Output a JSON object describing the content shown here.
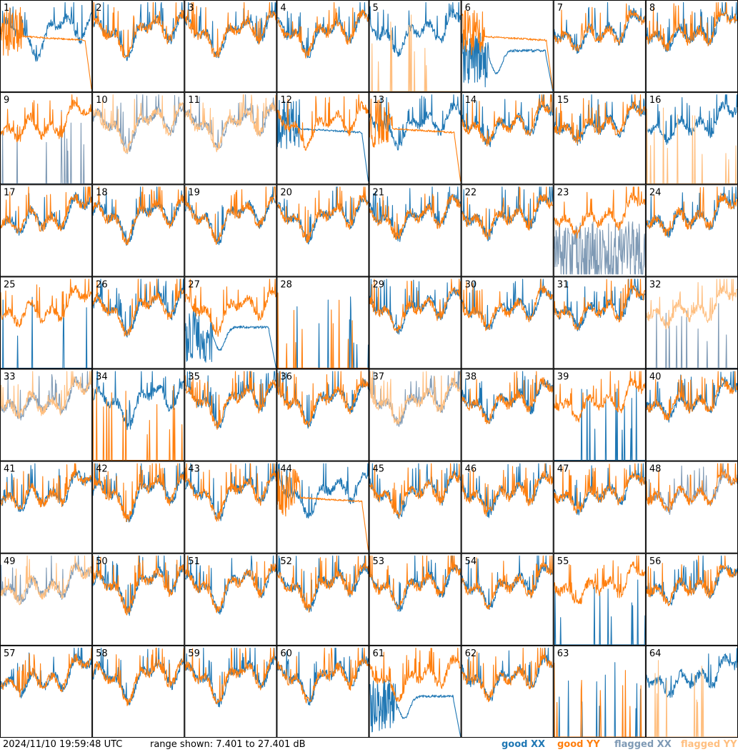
{
  "footer": {
    "timestamp": "2024/11/10 19:59:48 UTC",
    "range_text": "range shown: 7.401 to 27.401 dB",
    "legend": [
      "good XX",
      "good YY",
      "flagged XX",
      "flagged YY"
    ]
  },
  "colors": {
    "good_xx": "#1f77b4",
    "good_yy": "#ff7f0e",
    "flagged_xx": "#7f9ab5",
    "flagged_yy": "#ffbf80"
  },
  "chart_data": {
    "type": "line",
    "grid_layout": "8x8",
    "ylim_db": [
      7.401,
      27.401
    ],
    "series_names": [
      "good XX",
      "good YY",
      "flagged XX",
      "flagged YY"
    ],
    "panels": [
      {
        "label": "1",
        "xx": "good",
        "yy": "good",
        "mode_xx": "spec",
        "mode_yy": "flat"
      },
      {
        "label": "2",
        "xx": "good",
        "yy": "good",
        "mode_xx": "spec",
        "mode_yy": "spec"
      },
      {
        "label": "3",
        "xx": "good",
        "yy": "good",
        "mode_xx": "spec",
        "mode_yy": "spec"
      },
      {
        "label": "4",
        "xx": "good",
        "yy": "good",
        "mode_xx": "spec",
        "mode_yy": "spec"
      },
      {
        "label": "5",
        "xx": "good",
        "yy": "flagged",
        "mode_xx": "spec",
        "mode_yy": "spikes"
      },
      {
        "label": "6",
        "xx": "good",
        "yy": "good",
        "mode_xx": "dip",
        "mode_yy": "flat"
      },
      {
        "label": "7",
        "xx": "good",
        "yy": "good",
        "mode_xx": "spec",
        "mode_yy": "spec"
      },
      {
        "label": "8",
        "xx": "good",
        "yy": "good",
        "mode_xx": "spec",
        "mode_yy": "spec"
      },
      {
        "label": "9",
        "xx": "flagged",
        "yy": "good",
        "mode_xx": "spikes",
        "mode_yy": "spec"
      },
      {
        "label": "10",
        "xx": "flagged",
        "yy": "flagged",
        "mode_xx": "spec",
        "mode_yy": "spec"
      },
      {
        "label": "11",
        "xx": "flagged",
        "yy": "flagged",
        "mode_xx": "spec",
        "mode_yy": "spec"
      },
      {
        "label": "12",
        "xx": "good",
        "yy": "good",
        "mode_xx": "flat",
        "mode_yy": "spec"
      },
      {
        "label": "13",
        "xx": "good",
        "yy": "good",
        "mode_xx": "spec",
        "mode_yy": "flat"
      },
      {
        "label": "14",
        "xx": "good",
        "yy": "good",
        "mode_xx": "spec",
        "mode_yy": "spec"
      },
      {
        "label": "15",
        "xx": "good",
        "yy": "good",
        "mode_xx": "spec",
        "mode_yy": "spec"
      },
      {
        "label": "16",
        "xx": "good",
        "yy": "flagged",
        "mode_xx": "spec",
        "mode_yy": "spikes"
      },
      {
        "label": "17",
        "xx": "good",
        "yy": "good",
        "mode_xx": "spec",
        "mode_yy": "spec"
      },
      {
        "label": "18",
        "xx": "good",
        "yy": "good",
        "mode_xx": "spec",
        "mode_yy": "spec"
      },
      {
        "label": "19",
        "xx": "good",
        "yy": "good",
        "mode_xx": "spec",
        "mode_yy": "spec"
      },
      {
        "label": "20",
        "xx": "good",
        "yy": "good",
        "mode_xx": "spec",
        "mode_yy": "spec"
      },
      {
        "label": "21",
        "xx": "good",
        "yy": "good",
        "mode_xx": "spec",
        "mode_yy": "spec"
      },
      {
        "label": "22",
        "xx": "good",
        "yy": "good",
        "mode_xx": "spec",
        "mode_yy": "spec"
      },
      {
        "label": "23",
        "xx": "flagged",
        "yy": "good",
        "mode_xx": "noise",
        "mode_yy": "spec"
      },
      {
        "label": "24",
        "xx": "good",
        "yy": "good",
        "mode_xx": "spec",
        "mode_yy": "spec"
      },
      {
        "label": "25",
        "xx": "good",
        "yy": "good",
        "mode_xx": "spikes",
        "mode_yy": "spec"
      },
      {
        "label": "26",
        "xx": "good",
        "yy": "good",
        "mode_xx": "spec",
        "mode_yy": "spec"
      },
      {
        "label": "27",
        "xx": "good",
        "yy": "good",
        "mode_xx": "dip",
        "mode_yy": "spec"
      },
      {
        "label": "28",
        "xx": "good",
        "yy": "good",
        "mode_xx": "spikes",
        "mode_yy": "spikes"
      },
      {
        "label": "29",
        "xx": "good",
        "yy": "good",
        "mode_xx": "spec",
        "mode_yy": "spec"
      },
      {
        "label": "30",
        "xx": "good",
        "yy": "good",
        "mode_xx": "spec",
        "mode_yy": "spec"
      },
      {
        "label": "31",
        "xx": "good",
        "yy": "good",
        "mode_xx": "spec",
        "mode_yy": "spec"
      },
      {
        "label": "32",
        "xx": "flagged",
        "yy": "flagged",
        "mode_xx": "spikes",
        "mode_yy": "spec"
      },
      {
        "label": "33",
        "xx": "flagged",
        "yy": "flagged",
        "mode_xx": "spec",
        "mode_yy": "spec"
      },
      {
        "label": "34",
        "xx": "good",
        "yy": "good",
        "mode_xx": "spec",
        "mode_yy": "spikes"
      },
      {
        "label": "35",
        "xx": "good",
        "yy": "good",
        "mode_xx": "spec",
        "mode_yy": "spec"
      },
      {
        "label": "36",
        "xx": "good",
        "yy": "good",
        "mode_xx": "spec",
        "mode_yy": "spec"
      },
      {
        "label": "37",
        "xx": "flagged",
        "yy": "flagged",
        "mode_xx": "spec",
        "mode_yy": "spec"
      },
      {
        "label": "38",
        "xx": "good",
        "yy": "good",
        "mode_xx": "spec",
        "mode_yy": "spec"
      },
      {
        "label": "39",
        "xx": "good",
        "yy": "good",
        "mode_xx": "spikes",
        "mode_yy": "spec"
      },
      {
        "label": "40",
        "xx": "good",
        "yy": "good",
        "mode_xx": "spec",
        "mode_yy": "spec"
      },
      {
        "label": "41",
        "xx": "good",
        "yy": "good",
        "mode_xx": "spec",
        "mode_yy": "spec"
      },
      {
        "label": "42",
        "xx": "good",
        "yy": "good",
        "mode_xx": "spec",
        "mode_yy": "spec"
      },
      {
        "label": "43",
        "xx": "good",
        "yy": "good",
        "mode_xx": "spec",
        "mode_yy": "spec"
      },
      {
        "label": "44",
        "xx": "good",
        "yy": "good",
        "mode_xx": "spec",
        "mode_yy": "flat"
      },
      {
        "label": "45",
        "xx": "good",
        "yy": "good",
        "mode_xx": "spec",
        "mode_yy": "spec"
      },
      {
        "label": "46",
        "xx": "good",
        "yy": "good",
        "mode_xx": "spec",
        "mode_yy": "spec"
      },
      {
        "label": "47",
        "xx": "good",
        "yy": "good",
        "mode_xx": "spec",
        "mode_yy": "spec"
      },
      {
        "label": "48",
        "xx": "flagged",
        "yy": "good",
        "mode_xx": "spec",
        "mode_yy": "spec"
      },
      {
        "label": "49",
        "xx": "flagged",
        "yy": "flagged",
        "mode_xx": "spec",
        "mode_yy": "spec"
      },
      {
        "label": "50",
        "xx": "good",
        "yy": "good",
        "mode_xx": "spec",
        "mode_yy": "spec"
      },
      {
        "label": "51",
        "xx": "good",
        "yy": "good",
        "mode_xx": "spec",
        "mode_yy": "spec"
      },
      {
        "label": "52",
        "xx": "good",
        "yy": "good",
        "mode_xx": "spec",
        "mode_yy": "spec"
      },
      {
        "label": "53",
        "xx": "good",
        "yy": "good",
        "mode_xx": "spec",
        "mode_yy": "spec"
      },
      {
        "label": "54",
        "xx": "good",
        "yy": "good",
        "mode_xx": "spec",
        "mode_yy": "spec"
      },
      {
        "label": "55",
        "xx": "good",
        "yy": "good",
        "mode_xx": "spikes",
        "mode_yy": "spec"
      },
      {
        "label": "56",
        "xx": "good",
        "yy": "good",
        "mode_xx": "spec",
        "mode_yy": "spec"
      },
      {
        "label": "57",
        "xx": "good",
        "yy": "good",
        "mode_xx": "spec",
        "mode_yy": "spec"
      },
      {
        "label": "58",
        "xx": "good",
        "yy": "good",
        "mode_xx": "spec",
        "mode_yy": "spec"
      },
      {
        "label": "59",
        "xx": "good",
        "yy": "good",
        "mode_xx": "spec",
        "mode_yy": "spec"
      },
      {
        "label": "60",
        "xx": "good",
        "yy": "good",
        "mode_xx": "spec",
        "mode_yy": "spec"
      },
      {
        "label": "61",
        "xx": "good",
        "yy": "good",
        "mode_xx": "dip",
        "mode_yy": "spec"
      },
      {
        "label": "62",
        "xx": "good",
        "yy": "good",
        "mode_xx": "spec",
        "mode_yy": "spec"
      },
      {
        "label": "63",
        "xx": "good",
        "yy": "good",
        "mode_xx": "spikes",
        "mode_yy": "spikes"
      },
      {
        "label": "64",
        "xx": "good",
        "yy": "flagged",
        "mode_xx": "spec",
        "mode_yy": "spikes"
      }
    ]
  }
}
